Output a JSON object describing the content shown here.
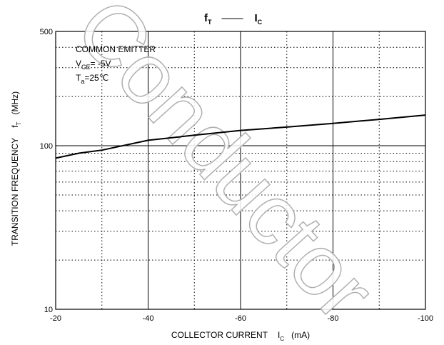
{
  "chart_data": {
    "type": "line",
    "title": {
      "left": "f",
      "left_sub": "T",
      "dash": "——",
      "right": "I",
      "right_sub": "C"
    },
    "x_label": {
      "text": "COLLECTOR CURRENT",
      "symbol": "I",
      "sub": "C",
      "unit": "(mA)"
    },
    "y_label": {
      "text": "TRANSITION FREQUENCY",
      "symbol": "f",
      "sub": "T",
      "unit": "(MHz)"
    },
    "annotations": [
      {
        "text": "COMMON EMITTER"
      },
      {
        "text": "V",
        "sub": "CE",
        "rest": "= -5V"
      },
      {
        "text": "T",
        "sub": "a",
        "rest": "=25℃"
      }
    ],
    "watermark": "Conductor",
    "x": [
      -20,
      -25,
      -30,
      -40,
      -50,
      -60,
      -70,
      -80,
      -90,
      -100
    ],
    "series": [
      {
        "name": "fT",
        "color": "#000000",
        "values": [
          84,
          90,
          94,
          108,
          116,
          124,
          130,
          137,
          145,
          154
        ]
      }
    ],
    "xlim": [
      -20,
      -100
    ],
    "xticks": [
      -20,
      -40,
      -60,
      -80,
      -100
    ],
    "xgrid_minor": [
      -30,
      -50,
      -70,
      -90
    ],
    "ylim": [
      10,
      500
    ],
    "yticks": [
      10,
      100,
      500
    ],
    "ygrid_minor": [
      20,
      30,
      40,
      50,
      60,
      70,
      80,
      90,
      200,
      300,
      400
    ],
    "ylog": true,
    "grid": true
  }
}
